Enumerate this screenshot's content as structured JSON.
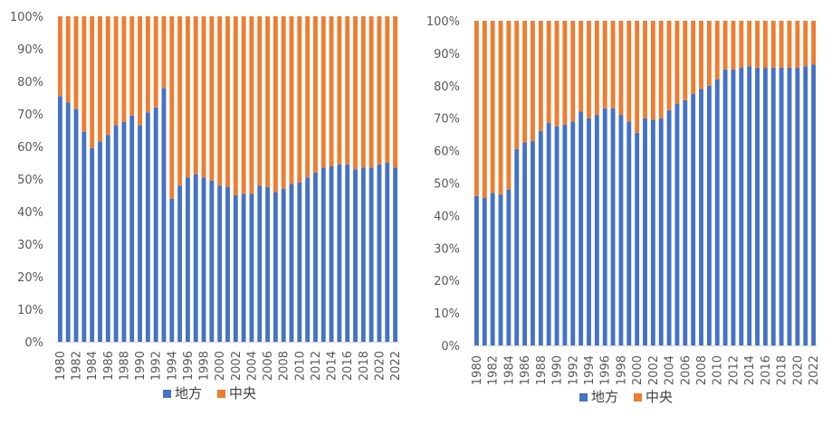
{
  "colors": {
    "local": "#4472C4",
    "central": "#ED7D31",
    "axis": "#D9D9D9",
    "text": "#595959"
  },
  "chart_data": [
    {
      "type": "bar",
      "stacked": true,
      "percent": true,
      "ylim": [
        0,
        100
      ],
      "yticks": [
        "0%",
        "10%",
        "20%",
        "30%",
        "40%",
        "50%",
        "60%",
        "70%",
        "80%",
        "90%",
        "100%"
      ],
      "xtick_labels": [
        "1980",
        "1982",
        "1984",
        "1986",
        "1988",
        "1990",
        "1992",
        "1994",
        "1996",
        "1998",
        "2000",
        "2002",
        "2004",
        "2006",
        "2008",
        "2010",
        "2012",
        "2014",
        "2016",
        "2018",
        "2020",
        "2022"
      ],
      "legend": [
        "地方",
        "中央"
      ],
      "legend_position": "bottom",
      "categories": [
        1980,
        1981,
        1982,
        1983,
        1984,
        1985,
        1986,
        1987,
        1988,
        1989,
        1990,
        1991,
        1992,
        1993,
        1994,
        1995,
        1996,
        1997,
        1998,
        1999,
        2000,
        2001,
        2002,
        2003,
        2004,
        2005,
        2006,
        2007,
        2008,
        2009,
        2010,
        2011,
        2012,
        2013,
        2014,
        2015,
        2016,
        2017,
        2018,
        2019,
        2020,
        2021,
        2022
      ],
      "series": [
        {
          "name": "地方",
          "values": [
            75.5,
            73.5,
            71.5,
            64.5,
            59.5,
            61.5,
            63.5,
            66.5,
            67.5,
            69.5,
            66.5,
            70.5,
            72,
            78,
            44,
            48,
            50.5,
            51.5,
            50.5,
            49.5,
            48,
            47.5,
            45,
            45.5,
            45.5,
            48,
            47.5,
            46,
            47,
            48.5,
            49,
            50.5,
            52,
            53.5,
            54,
            54.5,
            54.5,
            53,
            53.5,
            53.5,
            54.5,
            55,
            53.5
          ]
        },
        {
          "name": "中央",
          "values": [
            24.5,
            26.5,
            28.5,
            35.5,
            40.5,
            38.5,
            36.5,
            33.5,
            32.5,
            30.5,
            33.5,
            29.5,
            28,
            22,
            56,
            52,
            49.5,
            48.5,
            49.5,
            50.5,
            52,
            52.5,
            55,
            54.5,
            54.5,
            52,
            52.5,
            54,
            53,
            51.5,
            51,
            49.5,
            48,
            46.5,
            46,
            45.5,
            45.5,
            47,
            46.5,
            46.5,
            45.5,
            45,
            46.5
          ]
        }
      ]
    },
    {
      "type": "bar",
      "stacked": true,
      "percent": true,
      "ylim": [
        0,
        100
      ],
      "yticks": [
        "0%",
        "10%",
        "20%",
        "30%",
        "40%",
        "50%",
        "60%",
        "70%",
        "80%",
        "90%",
        "100%"
      ],
      "xtick_labels": [
        "1980",
        "1982",
        "1984",
        "1986",
        "1988",
        "1990",
        "1992",
        "1994",
        "1996",
        "1998",
        "2000",
        "2002",
        "2004",
        "2006",
        "2008",
        "2010",
        "2012",
        "2014",
        "2016",
        "2018",
        "2020",
        "2022"
      ],
      "legend": [
        "地方",
        "中央"
      ],
      "legend_position": "bottom",
      "categories": [
        1980,
        1981,
        1982,
        1983,
        1984,
        1985,
        1986,
        1987,
        1988,
        1989,
        1990,
        1991,
        1992,
        1993,
        1994,
        1995,
        1996,
        1997,
        1998,
        1999,
        2000,
        2001,
        2002,
        2003,
        2004,
        2005,
        2006,
        2007,
        2008,
        2009,
        2010,
        2011,
        2012,
        2013,
        2014,
        2015,
        2016,
        2017,
        2018,
        2019,
        2020,
        2021,
        2022
      ],
      "series": [
        {
          "name": "地方",
          "values": [
            46,
            45.5,
            47,
            46.5,
            48,
            60.5,
            62.5,
            63,
            66,
            68.5,
            67.5,
            68,
            69,
            72,
            70,
            71,
            73,
            73,
            71,
            69,
            65.5,
            70,
            69.5,
            70,
            72.5,
            74.5,
            75.5,
            77.5,
            79,
            80,
            82,
            85,
            85,
            85.5,
            86,
            85.5,
            85.5,
            85.5,
            85.5,
            85.5,
            85.5,
            86,
            86.5
          ]
        },
        {
          "name": "中央",
          "values": [
            54,
            54.5,
            53,
            53.5,
            52,
            39.5,
            37.5,
            37,
            34,
            31.5,
            32.5,
            32,
            31,
            28,
            30,
            29,
            27,
            27,
            29,
            31,
            34.5,
            30,
            30.5,
            30,
            27.5,
            25.5,
            24.5,
            22.5,
            21,
            20,
            18,
            15,
            15,
            14.5,
            14,
            14.5,
            14.5,
            14.5,
            14.5,
            14.5,
            14.5,
            14,
            13.5
          ]
        }
      ]
    }
  ]
}
